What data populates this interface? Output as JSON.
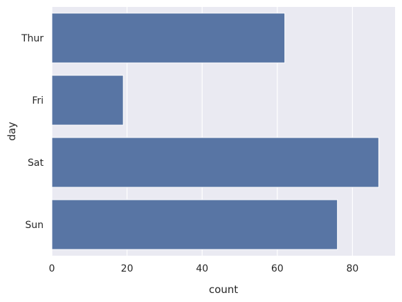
{
  "chart_data": {
    "type": "bar",
    "orientation": "horizontal",
    "categories": [
      "Thur",
      "Fri",
      "Sat",
      "Sun"
    ],
    "values": [
      62,
      19,
      87,
      76
    ],
    "xlabel": "count",
    "ylabel": "day",
    "xlim": [
      0,
      91.35
    ],
    "xticks": [
      0,
      20,
      40,
      60,
      80
    ],
    "grid": true,
    "colors": {
      "bar": "#5875a4",
      "plot_background": "#eaeaf2",
      "grid": "#ffffff",
      "text": "#262626"
    }
  }
}
